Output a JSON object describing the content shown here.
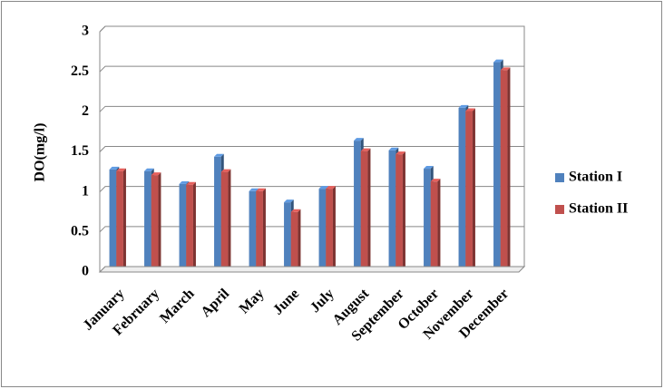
{
  "chart_data": {
    "type": "bar",
    "y_label": "DO(mg/l)",
    "categories": [
      "January",
      "February",
      "March",
      "April",
      "May",
      "June",
      "July",
      "August",
      "September",
      "October",
      "November",
      "December"
    ],
    "series": [
      {
        "name": "Station I",
        "color": "#4f81bd",
        "values": [
          1.28,
          1.26,
          1.1,
          1.44,
          1.01,
          0.87,
          1.04,
          1.64,
          1.52,
          1.29,
          2.05,
          2.62
        ]
      },
      {
        "name": "Station II",
        "color": "#c0504d",
        "values": [
          1.26,
          1.21,
          1.09,
          1.25,
          1.01,
          0.75,
          1.04,
          1.51,
          1.47,
          1.13,
          2.01,
          2.52
        ]
      }
    ],
    "ylim": [
      0,
      3
    ],
    "yticks": [
      0,
      0.5,
      1,
      1.5,
      2,
      2.5,
      3
    ],
    "grid": true,
    "legend": "right"
  }
}
